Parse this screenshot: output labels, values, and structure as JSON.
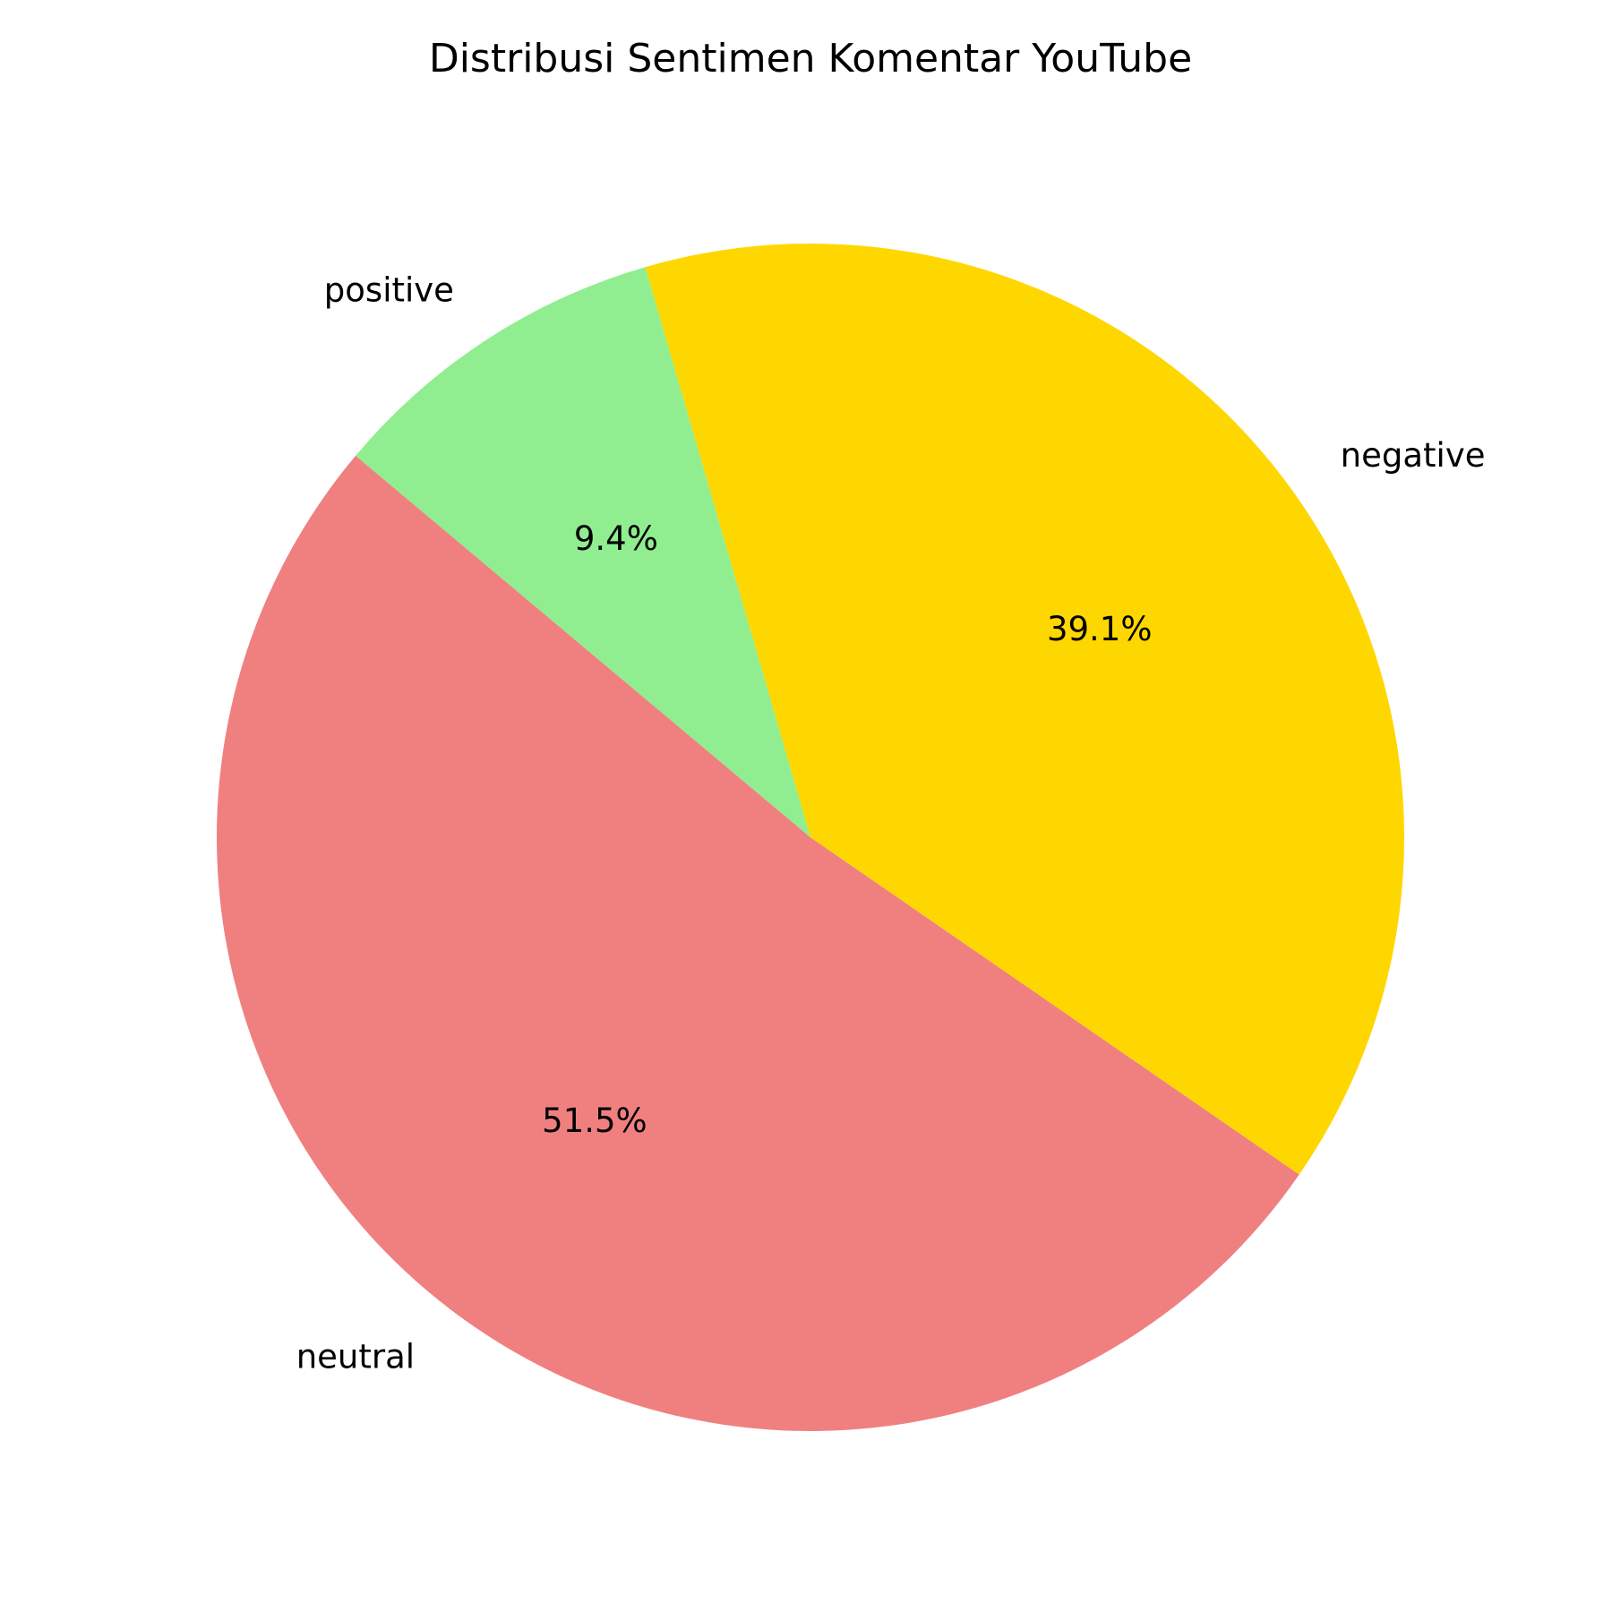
{
  "chart_data": {
    "type": "pie",
    "title": "Distribusi Sentimen Komentar YouTube",
    "start_angle_deg": 140,
    "direction": "counterclockwise",
    "slices": [
      {
        "label": "neutral",
        "value": 51.5,
        "pct_label": "51.5%",
        "color": "#F08080"
      },
      {
        "label": "negative",
        "value": 39.1,
        "pct_label": "39.1%",
        "color": "#FFD700"
      },
      {
        "label": "positive",
        "value": 9.4,
        "pct_label": "9.4%",
        "color": "#90EE90"
      }
    ]
  }
}
